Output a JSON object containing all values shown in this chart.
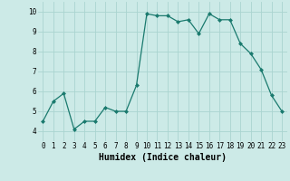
{
  "x": [
    0,
    1,
    2,
    3,
    4,
    5,
    6,
    7,
    8,
    9,
    10,
    11,
    12,
    13,
    14,
    15,
    16,
    17,
    18,
    19,
    20,
    21,
    22,
    23
  ],
  "y": [
    4.5,
    5.5,
    5.9,
    4.1,
    4.5,
    4.5,
    5.2,
    5.0,
    5.0,
    6.3,
    9.9,
    9.8,
    9.8,
    9.5,
    9.6,
    8.9,
    9.9,
    9.6,
    9.6,
    8.4,
    7.9,
    7.1,
    5.8,
    5.0
  ],
  "xlabel": "Humidex (Indice chaleur)",
  "ylim": [
    3.5,
    10.5
  ],
  "xlim": [
    -0.5,
    23.5
  ],
  "yticks": [
    4,
    5,
    6,
    7,
    8,
    9,
    10
  ],
  "xticks": [
    0,
    1,
    2,
    3,
    4,
    5,
    6,
    7,
    8,
    9,
    10,
    11,
    12,
    13,
    14,
    15,
    16,
    17,
    18,
    19,
    20,
    21,
    22,
    23
  ],
  "line_color": "#1a7a6e",
  "marker": "D",
  "marker_size": 2.0,
  "bg_color": "#cceae7",
  "grid_color": "#aad4d0",
  "tick_fontsize": 5.5,
  "xlabel_fontsize": 7,
  "line_width": 0.9
}
